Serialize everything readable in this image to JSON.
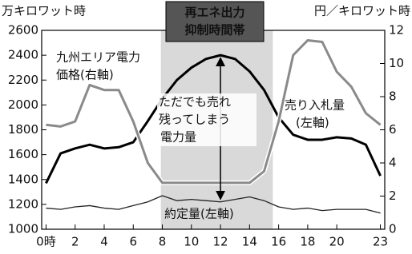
{
  "chart_data": {
    "type": "line",
    "y_label": "万キロワット時",
    "y2_label": "円／キロワット時",
    "shaded_label": [
      "再エネ出力",
      "抑制時間帯"
    ],
    "shaded_x": [
      7.9,
      15.6
    ],
    "annotation": [
      "ただでも売れ",
      "残ってしまう",
      "電力量"
    ],
    "x": [
      0,
      1,
      2,
      3,
      4,
      5,
      6,
      7,
      8,
      9,
      10,
      11,
      12,
      13,
      14,
      15,
      16,
      17,
      18,
      19,
      20,
      21,
      22,
      23
    ],
    "xlim": [
      -0.3,
      23.3
    ],
    "xticks": [
      {
        "value": 0,
        "label": "0時"
      },
      2,
      4,
      6,
      8,
      10,
      12,
      14,
      16,
      18,
      20,
      23
    ],
    "ylim": [
      1000,
      2600
    ],
    "yticks": [
      1000,
      1200,
      1400,
      1600,
      1800,
      2000,
      2200,
      2400,
      2600
    ],
    "y2lim": [
      0,
      12
    ],
    "y2ticks": [
      0,
      2,
      4,
      6,
      8,
      10,
      12
    ],
    "series": [
      {
        "label": [
          "売り入札量",
          "(左軸)"
        ],
        "color": "#000000",
        "width": 3,
        "values": [
          1370,
          1610,
          1650,
          1680,
          1650,
          1660,
          1700,
          1870,
          2050,
          2200,
          2300,
          2370,
          2400,
          2370,
          2270,
          2120,
          1900,
          1760,
          1720,
          1720,
          1740,
          1730,
          1680,
          1430
        ]
      },
      {
        "label": [
          "約定量(左軸)"
        ],
        "color": "#222222",
        "width": 1.3,
        "values": [
          1170,
          1160,
          1180,
          1190,
          1170,
          1160,
          1190,
          1220,
          1270,
          1230,
          1240,
          1230,
          1220,
          1240,
          1260,
          1230,
          1180,
          1160,
          1170,
          1150,
          1160,
          1160,
          1160,
          1130
        ]
      },
      {
        "label": [
          "九州エリア電力",
          "価格(右軸)"
        ],
        "color": "#8a8a8a",
        "width": 3,
        "axis": "y2",
        "values": [
          6.3,
          6.2,
          6.5,
          8.7,
          8.4,
          8.4,
          6.5,
          4.0,
          2.8,
          2.8,
          2.8,
          2.8,
          2.8,
          2.8,
          2.8,
          3.5,
          6.5,
          10.5,
          11.4,
          11.3,
          9.5,
          8.6,
          7.0,
          6.3
        ]
      }
    ]
  }
}
